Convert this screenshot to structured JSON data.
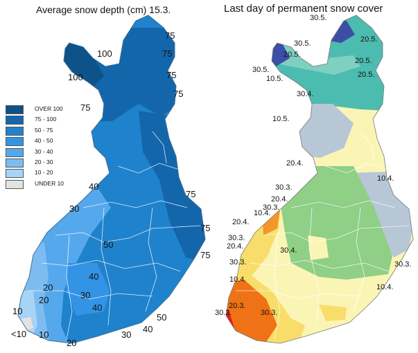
{
  "left_map": {
    "title": "Average snow depth (cm) 15.3.",
    "labels": [
      "75",
      "100",
      "75",
      "100",
      "75",
      "75",
      "75",
      "40",
      "75",
      "30",
      "75",
      "50",
      "75",
      "40",
      "20",
      "30",
      "20",
      "40",
      "10",
      "50",
      "<10",
      "10",
      "30",
      "40",
      "20"
    ],
    "legend": [
      {
        "label": "OVER  100",
        "color": "#0d5289"
      },
      {
        "label": "75  -  100",
        "color": "#1466ab"
      },
      {
        "label": "50  -  75",
        "color": "#1f82cc"
      },
      {
        "label": "40  -  50",
        "color": "#3394e6"
      },
      {
        "label": "30  -  40",
        "color": "#56a8ed"
      },
      {
        "label": "20  -  30",
        "color": "#7dbcf0"
      },
      {
        "label": "10  -  20",
        "color": "#a7d3f5"
      },
      {
        "label": "UNDER  10",
        "color": "#e3e3e3"
      }
    ]
  },
  "right_map": {
    "title": "Last day of permanent snow cover",
    "labels": [
      "30.5.",
      "20.5.",
      "30.5.",
      "20.5.",
      "30.5.",
      "20.5.",
      "20.5.",
      "10.5.",
      "30.4.",
      "10.5.",
      "20.4.",
      "10.4.",
      "30.3.",
      "20.4.",
      "10.4.",
      "30.3.",
      "20.4.",
      "30.3.",
      "30.4.",
      "20.4.",
      "30.3.",
      "30.3.",
      "10.4.",
      "10.4.",
      "20.3.",
      "30.3.",
      "30.3."
    ]
  },
  "colors": {
    "blue_dark": "#0d5289",
    "blue_mid": "#1f82cc",
    "blue_light": "#7dbcf0",
    "navy": "#3b4fa6",
    "teal": "#4cbcb0",
    "grey_blue": "#b7c7d6",
    "green": "#8fcf86",
    "pale_yellow": "#fbf5b5",
    "yellow": "#f8dd6a",
    "orange": "#f4962a",
    "dark_orange": "#ef7316",
    "red": "#e51b1b"
  }
}
